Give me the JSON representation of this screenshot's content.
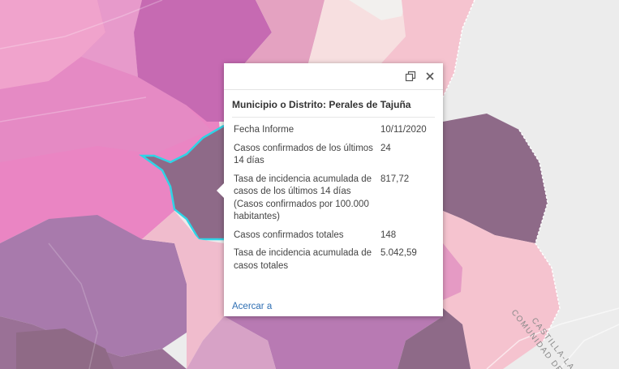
{
  "map": {
    "colors": {
      "background": "#ececec",
      "light_pink": "#f5c3cf",
      "pink": "#ea85c3",
      "medium_pink": "#df88c3",
      "magenta": "#c66ab2",
      "purple": "#a87aac",
      "dark_mauve": "#8e6a88",
      "selected_outline": "#2fd4e6"
    },
    "region_labels": [
      "CASTILLA-LA MA",
      "COMUNIDAD DE"
    ]
  },
  "popup": {
    "maximize_icon": "maximize-icon",
    "close_icon": "close-icon",
    "title": "Municipio o Distrito: Perales de Tajuña",
    "rows": [
      {
        "key": "Fecha Informe",
        "value": "10/11/2020"
      },
      {
        "key": "Casos confirmados de los últimos 14 días",
        "value": "24"
      },
      {
        "key": "Tasa de incidencia acumulada de casos de los últimos 14 días (Casos confirmados por 100.000 habitantes)",
        "value": "817,72"
      },
      {
        "key": "Casos confirmados totales",
        "value": "148"
      },
      {
        "key": "Tasa de incidencia acumulada de casos totales",
        "value": "5.042,59"
      }
    ],
    "zoom_link": "Acercar a"
  }
}
